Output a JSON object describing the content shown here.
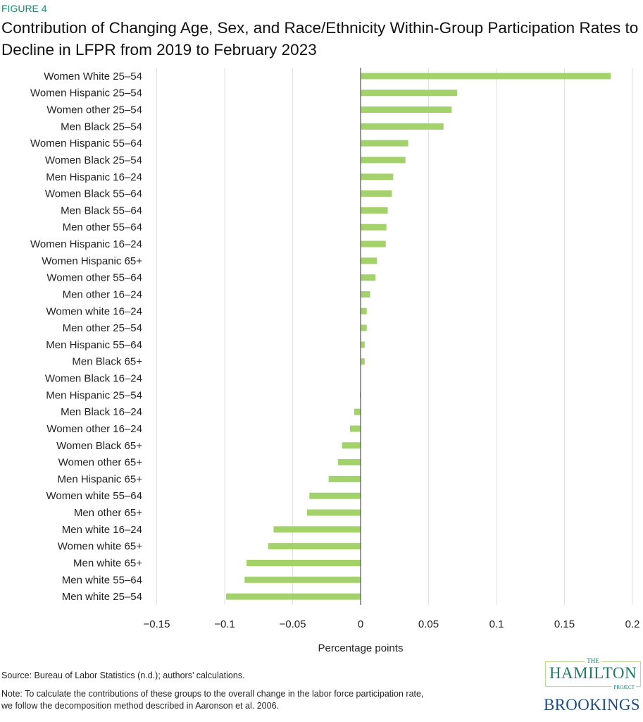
{
  "figure_label": "FIGURE 4",
  "title": "Contribution of Changing Age, Sex, and Race/Ethnicity Within-Group Participation Rates to Decline in LFPR from 2019 to February 2023",
  "source": "Source: Bureau of Labor Statistics (n.d.); authors’ calculations.",
  "note_line1": "Note: To calculate the contributions of these groups to the overall change in the labor force participation rate,",
  "note_line2": "we follow the decomposition method described in Aaronson et al. 2006.",
  "logos": {
    "hamilton_the": "THE",
    "hamilton_name": "HAMILTON",
    "hamilton_project": "PROJECT",
    "brookings": "BROOKINGS"
  },
  "colors": {
    "bar": "#a3d16a",
    "accent": "#1f8a6e",
    "grid": "#e2e2e2",
    "zero_line": "#555555"
  },
  "chart_data": {
    "type": "bar",
    "orientation": "horizontal",
    "title": "Contribution of Changing Age, Sex, and Race/Ethnicity Within-Group Participation Rates to Decline in LFPR from 2019 to February 2023",
    "xlabel": "Percentage points",
    "ylabel": "",
    "xlim": [
      -0.15,
      0.2
    ],
    "xticks": [
      -0.15,
      -0.1,
      -0.05,
      0,
      0.05,
      0.1,
      0.15,
      0.2
    ],
    "xtick_labels": [
      "-0.15",
      "-0.1",
      "-0.05",
      "0",
      "0.05",
      "0.1",
      "0.15",
      "0.2"
    ],
    "grid": "vertical",
    "categories": [
      "Women White 25-54",
      "Women Hispanic 25-54",
      "Women other 25-54",
      "Men Black 25-54",
      "Women Hispanic 55-64",
      "Women Black 25-54",
      "Men Hispanic 16-24",
      "Women Black 55-64",
      "Men Black 55-64",
      "Men other 55-64",
      "Women Hispanic 16-24",
      "Women Hispanic 65+",
      "Women other 55-64",
      "Men other 16-24",
      "Women white 16-24",
      "Men other 25-54",
      "Men Hispanic 55-64",
      "Men Black 65+",
      "Women Black 16-24",
      "Men Hispanic 25-54",
      "Men Black 16-24",
      "Women other 16-24",
      "Women Black 65+",
      "Women other 65+",
      "Men Hispanic 65+",
      "Women white 55-64",
      "Men other 65+",
      "Men white 16-24",
      "Women white 65+",
      "Men white 65+",
      "Men white 55-64",
      "Men white 25-54"
    ],
    "values": [
      0.184,
      0.071,
      0.067,
      0.061,
      0.035,
      0.033,
      0.024,
      0.023,
      0.02,
      0.019,
      0.0185,
      0.012,
      0.011,
      0.007,
      0.0045,
      0.0045,
      0.003,
      0.003,
      0.0,
      -0.0005,
      -0.0047,
      -0.0078,
      -0.0136,
      -0.0166,
      -0.0235,
      -0.0377,
      -0.0394,
      -0.064,
      -0.068,
      -0.0839,
      -0.0853,
      -0.099
    ]
  }
}
